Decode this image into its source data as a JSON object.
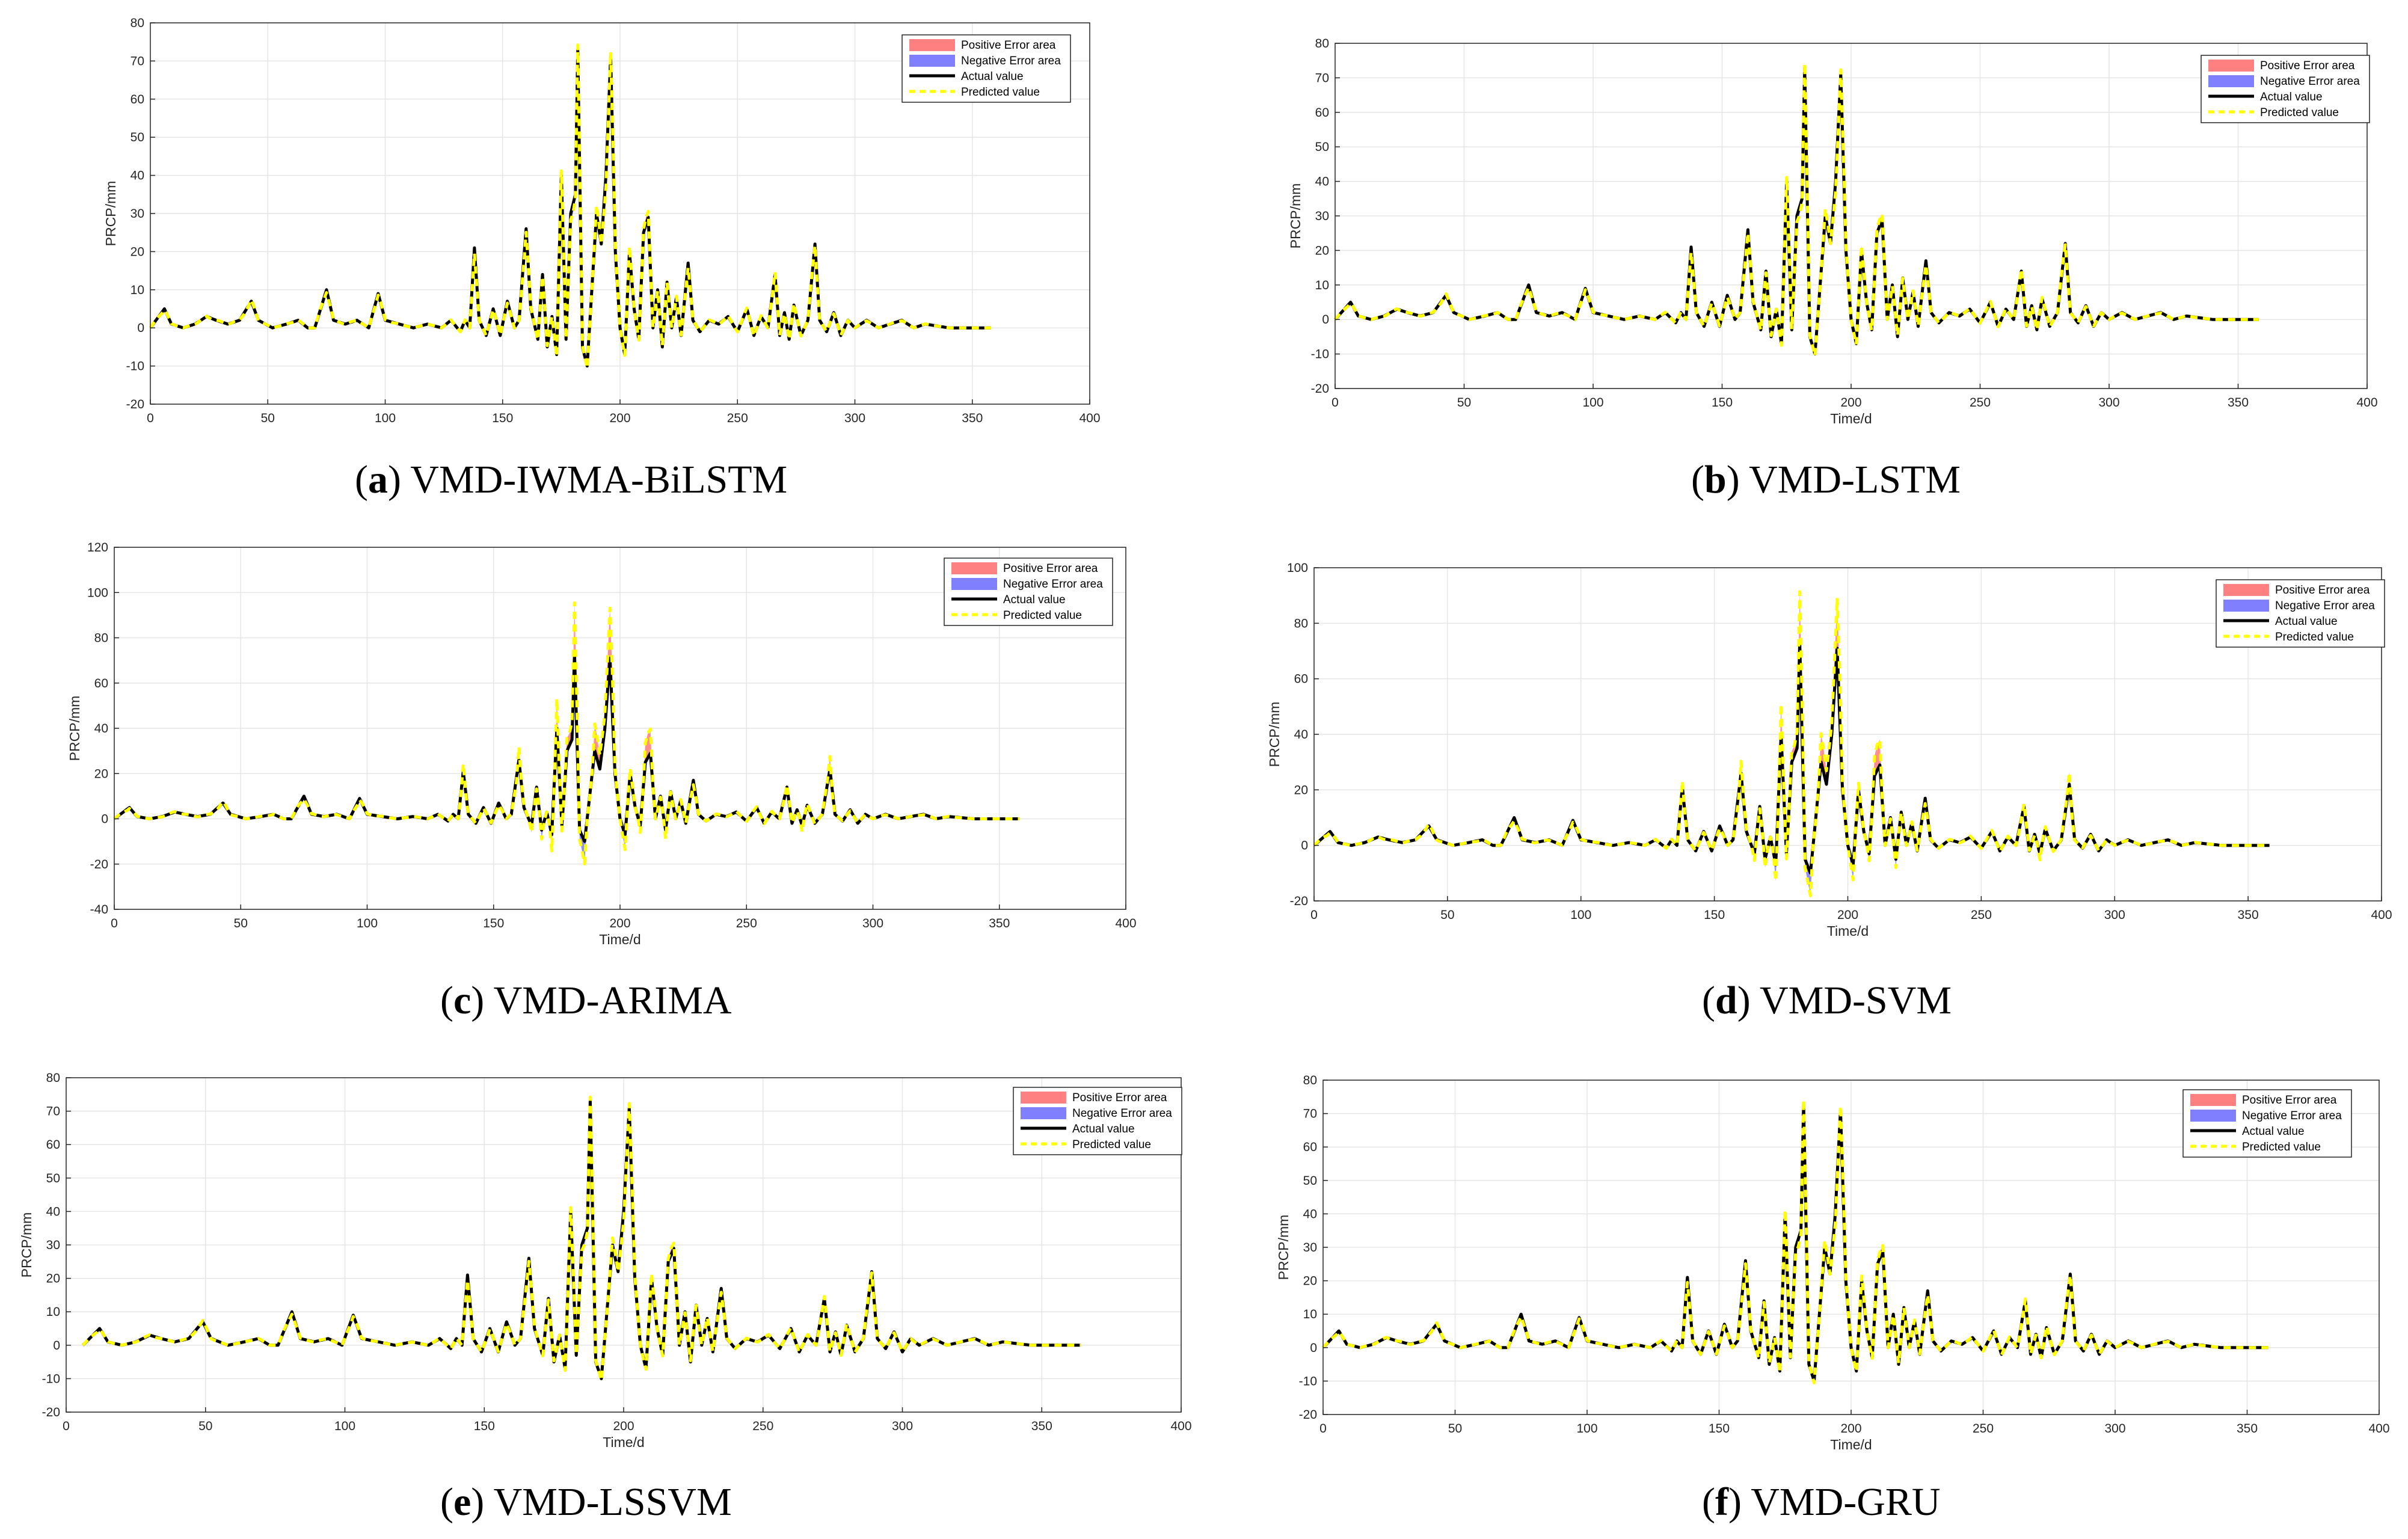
{
  "legend": [
    "Positive Error area",
    "Negative Error area",
    "Actual value",
    "Predicted value"
  ],
  "colors": {
    "actual": "#000000",
    "predicted": "#ffff00",
    "positive_error": "#ff8080",
    "negative_error": "#8080ff",
    "grid": "#e6e6e6",
    "axes": "#262626"
  },
  "actual_peaks": [
    [
      0,
      0
    ],
    [
      6,
      5
    ],
    [
      9,
      1
    ],
    [
      14,
      0
    ],
    [
      19,
      1
    ],
    [
      24,
      3
    ],
    [
      28,
      2
    ],
    [
      33,
      1
    ],
    [
      38,
      2
    ],
    [
      43,
      7
    ],
    [
      46,
      2
    ],
    [
      52,
      0
    ],
    [
      58,
      1
    ],
    [
      63,
      2
    ],
    [
      67,
      0
    ],
    [
      70,
      0
    ],
    [
      75,
      10
    ],
    [
      78,
      2
    ],
    [
      83,
      1
    ],
    [
      88,
      2
    ],
    [
      93,
      0
    ],
    [
      97,
      9
    ],
    [
      100,
      2
    ],
    [
      106,
      1
    ],
    [
      112,
      0
    ],
    [
      118,
      1
    ],
    [
      124,
      0
    ],
    [
      128,
      2
    ],
    [
      132,
      -1
    ],
    [
      134,
      2
    ],
    [
      136,
      0
    ],
    [
      138,
      21
    ],
    [
      140,
      2
    ],
    [
      143,
      -2
    ],
    [
      146,
      5
    ],
    [
      149,
      -2
    ],
    [
      152,
      7
    ],
    [
      155,
      0
    ],
    [
      157,
      2
    ],
    [
      160,
      26
    ],
    [
      162,
      5
    ],
    [
      165,
      -3
    ],
    [
      167,
      14
    ],
    [
      169,
      -5
    ],
    [
      171,
      3
    ],
    [
      173,
      -7
    ],
    [
      175,
      40
    ],
    [
      177,
      -3
    ],
    [
      179,
      30
    ],
    [
      181,
      35
    ],
    [
      182,
      73
    ],
    [
      184,
      -5
    ],
    [
      186,
      -10
    ],
    [
      188,
      10
    ],
    [
      190,
      30
    ],
    [
      192,
      22
    ],
    [
      194,
      40
    ],
    [
      196,
      71
    ],
    [
      198,
      20
    ],
    [
      200,
      0
    ],
    [
      202,
      -7
    ],
    [
      204,
      20
    ],
    [
      206,
      5
    ],
    [
      208,
      -3
    ],
    [
      210,
      25
    ],
    [
      212,
      29
    ],
    [
      214,
      0
    ],
    [
      216,
      10
    ],
    [
      218,
      -5
    ],
    [
      220,
      12
    ],
    [
      222,
      0
    ],
    [
      224,
      8
    ],
    [
      226,
      -2
    ],
    [
      229,
      17
    ],
    [
      231,
      2
    ],
    [
      234,
      -1
    ],
    [
      238,
      2
    ],
    [
      242,
      1
    ],
    [
      246,
      3
    ],
    [
      250,
      -1
    ],
    [
      254,
      5
    ],
    [
      257,
      -2
    ],
    [
      260,
      3
    ],
    [
      263,
      0
    ],
    [
      266,
      14
    ],
    [
      268,
      -2
    ],
    [
      270,
      4
    ],
    [
      272,
      -3
    ],
    [
      274,
      6
    ],
    [
      277,
      -2
    ],
    [
      280,
      2
    ],
    [
      283,
      22
    ],
    [
      285,
      2
    ],
    [
      288,
      -1
    ],
    [
      291,
      4
    ],
    [
      294,
      -2
    ],
    [
      297,
      2
    ],
    [
      300,
      0
    ],
    [
      305,
      2
    ],
    [
      310,
      0
    ],
    [
      315,
      1
    ],
    [
      320,
      2
    ],
    [
      325,
      0
    ],
    [
      330,
      1
    ],
    [
      340,
      0
    ],
    [
      350,
      0
    ],
    [
      358,
      0
    ]
  ],
  "charts": [
    {
      "caption_letter": "a",
      "caption_text": " VMD-IWMA-BiLSTM",
      "chart_data": {
        "type": "area",
        "xlabel": "",
        "ylabel": "PRCP/mm",
        "xlim": [
          0,
          400
        ],
        "ylim": [
          -20,
          80
        ],
        "xticks": [
          0,
          50,
          100,
          150,
          200,
          250,
          300,
          350,
          400
        ],
        "yticks": [
          -20,
          -10,
          0,
          10,
          20,
          30,
          40,
          50,
          60,
          70,
          80
        ],
        "x_offset": 0,
        "error_scale": 0.3,
        "series": [
          "Positive Error area",
          "Negative Error area",
          "Actual value",
          "Predicted value"
        ]
      }
    },
    {
      "caption_letter": "b",
      "caption_text": " VMD-LSTM",
      "chart_data": {
        "type": "area",
        "xlabel": "Time/d",
        "ylabel": "PRCP/mm",
        "xlim": [
          0,
          400
        ],
        "ylim": [
          -20,
          80
        ],
        "xticks": [
          0,
          50,
          100,
          150,
          200,
          250,
          300,
          350,
          400
        ],
        "yticks": [
          -20,
          -10,
          0,
          10,
          20,
          30,
          40,
          50,
          60,
          70,
          80
        ],
        "x_offset": 0,
        "error_scale": 0.3,
        "series": [
          "Positive Error area",
          "Negative Error area",
          "Actual value",
          "Predicted value"
        ]
      }
    },
    {
      "caption_letter": "c",
      "caption_text": " VMD-ARIMA",
      "chart_data": {
        "type": "area",
        "xlabel": "Time/d",
        "ylabel": "PRCP/mm",
        "xlim": [
          0,
          400
        ],
        "ylim": [
          -40,
          120
        ],
        "xticks": [
          0,
          50,
          100,
          150,
          200,
          250,
          300,
          350,
          400
        ],
        "yticks": [
          -40,
          -20,
          0,
          20,
          40,
          60,
          80,
          100,
          120
        ],
        "x_offset": 0,
        "error_scale": 1.0,
        "series": [
          "Positive Error area",
          "Negative Error area",
          "Actual value",
          "Predicted value"
        ]
      }
    },
    {
      "caption_letter": "d",
      "caption_text": " VMD-SVM",
      "chart_data": {
        "type": "area",
        "xlabel": "Time/d",
        "ylabel": "PRCP/mm",
        "xlim": [
          0,
          400
        ],
        "ylim": [
          -20,
          100
        ],
        "xticks": [
          0,
          50,
          100,
          150,
          200,
          250,
          300,
          350,
          400
        ],
        "yticks": [
          -20,
          0,
          20,
          40,
          60,
          80,
          100
        ],
        "x_offset": 0,
        "error_scale": 0.8,
        "series": [
          "Positive Error area",
          "Negative Error area",
          "Actual value",
          "Predicted value"
        ]
      }
    },
    {
      "caption_letter": "e",
      "caption_text": " VMD-LSSVM",
      "chart_data": {
        "type": "area",
        "xlabel": "Time/d",
        "ylabel": "PRCP/mm",
        "xlim": [
          0,
          400
        ],
        "ylim": [
          -20,
          80
        ],
        "xticks": [
          0,
          50,
          100,
          150,
          200,
          250,
          300,
          350,
          400
        ],
        "yticks": [
          -20,
          -10,
          0,
          10,
          20,
          30,
          40,
          50,
          60,
          70,
          80
        ],
        "x_offset": 6,
        "error_scale": 0.3,
        "series": [
          "Positive Error area",
          "Negative Error area",
          "Actual value",
          "Predicted value"
        ]
      }
    },
    {
      "caption_letter": "f",
      "caption_text": " VMD-GRU",
      "chart_data": {
        "type": "area",
        "xlabel": "Time/d",
        "ylabel": "PRCP/mm",
        "xlim": [
          0,
          400
        ],
        "ylim": [
          -20,
          80
        ],
        "xticks": [
          0,
          50,
          100,
          150,
          200,
          250,
          300,
          350,
          400
        ],
        "yticks": [
          -20,
          -10,
          0,
          10,
          20,
          30,
          40,
          50,
          60,
          70,
          80
        ],
        "x_offset": 0,
        "error_scale": 0.3,
        "series": [
          "Positive Error area",
          "Negative Error area",
          "Actual value",
          "Predicted value"
        ]
      }
    }
  ]
}
